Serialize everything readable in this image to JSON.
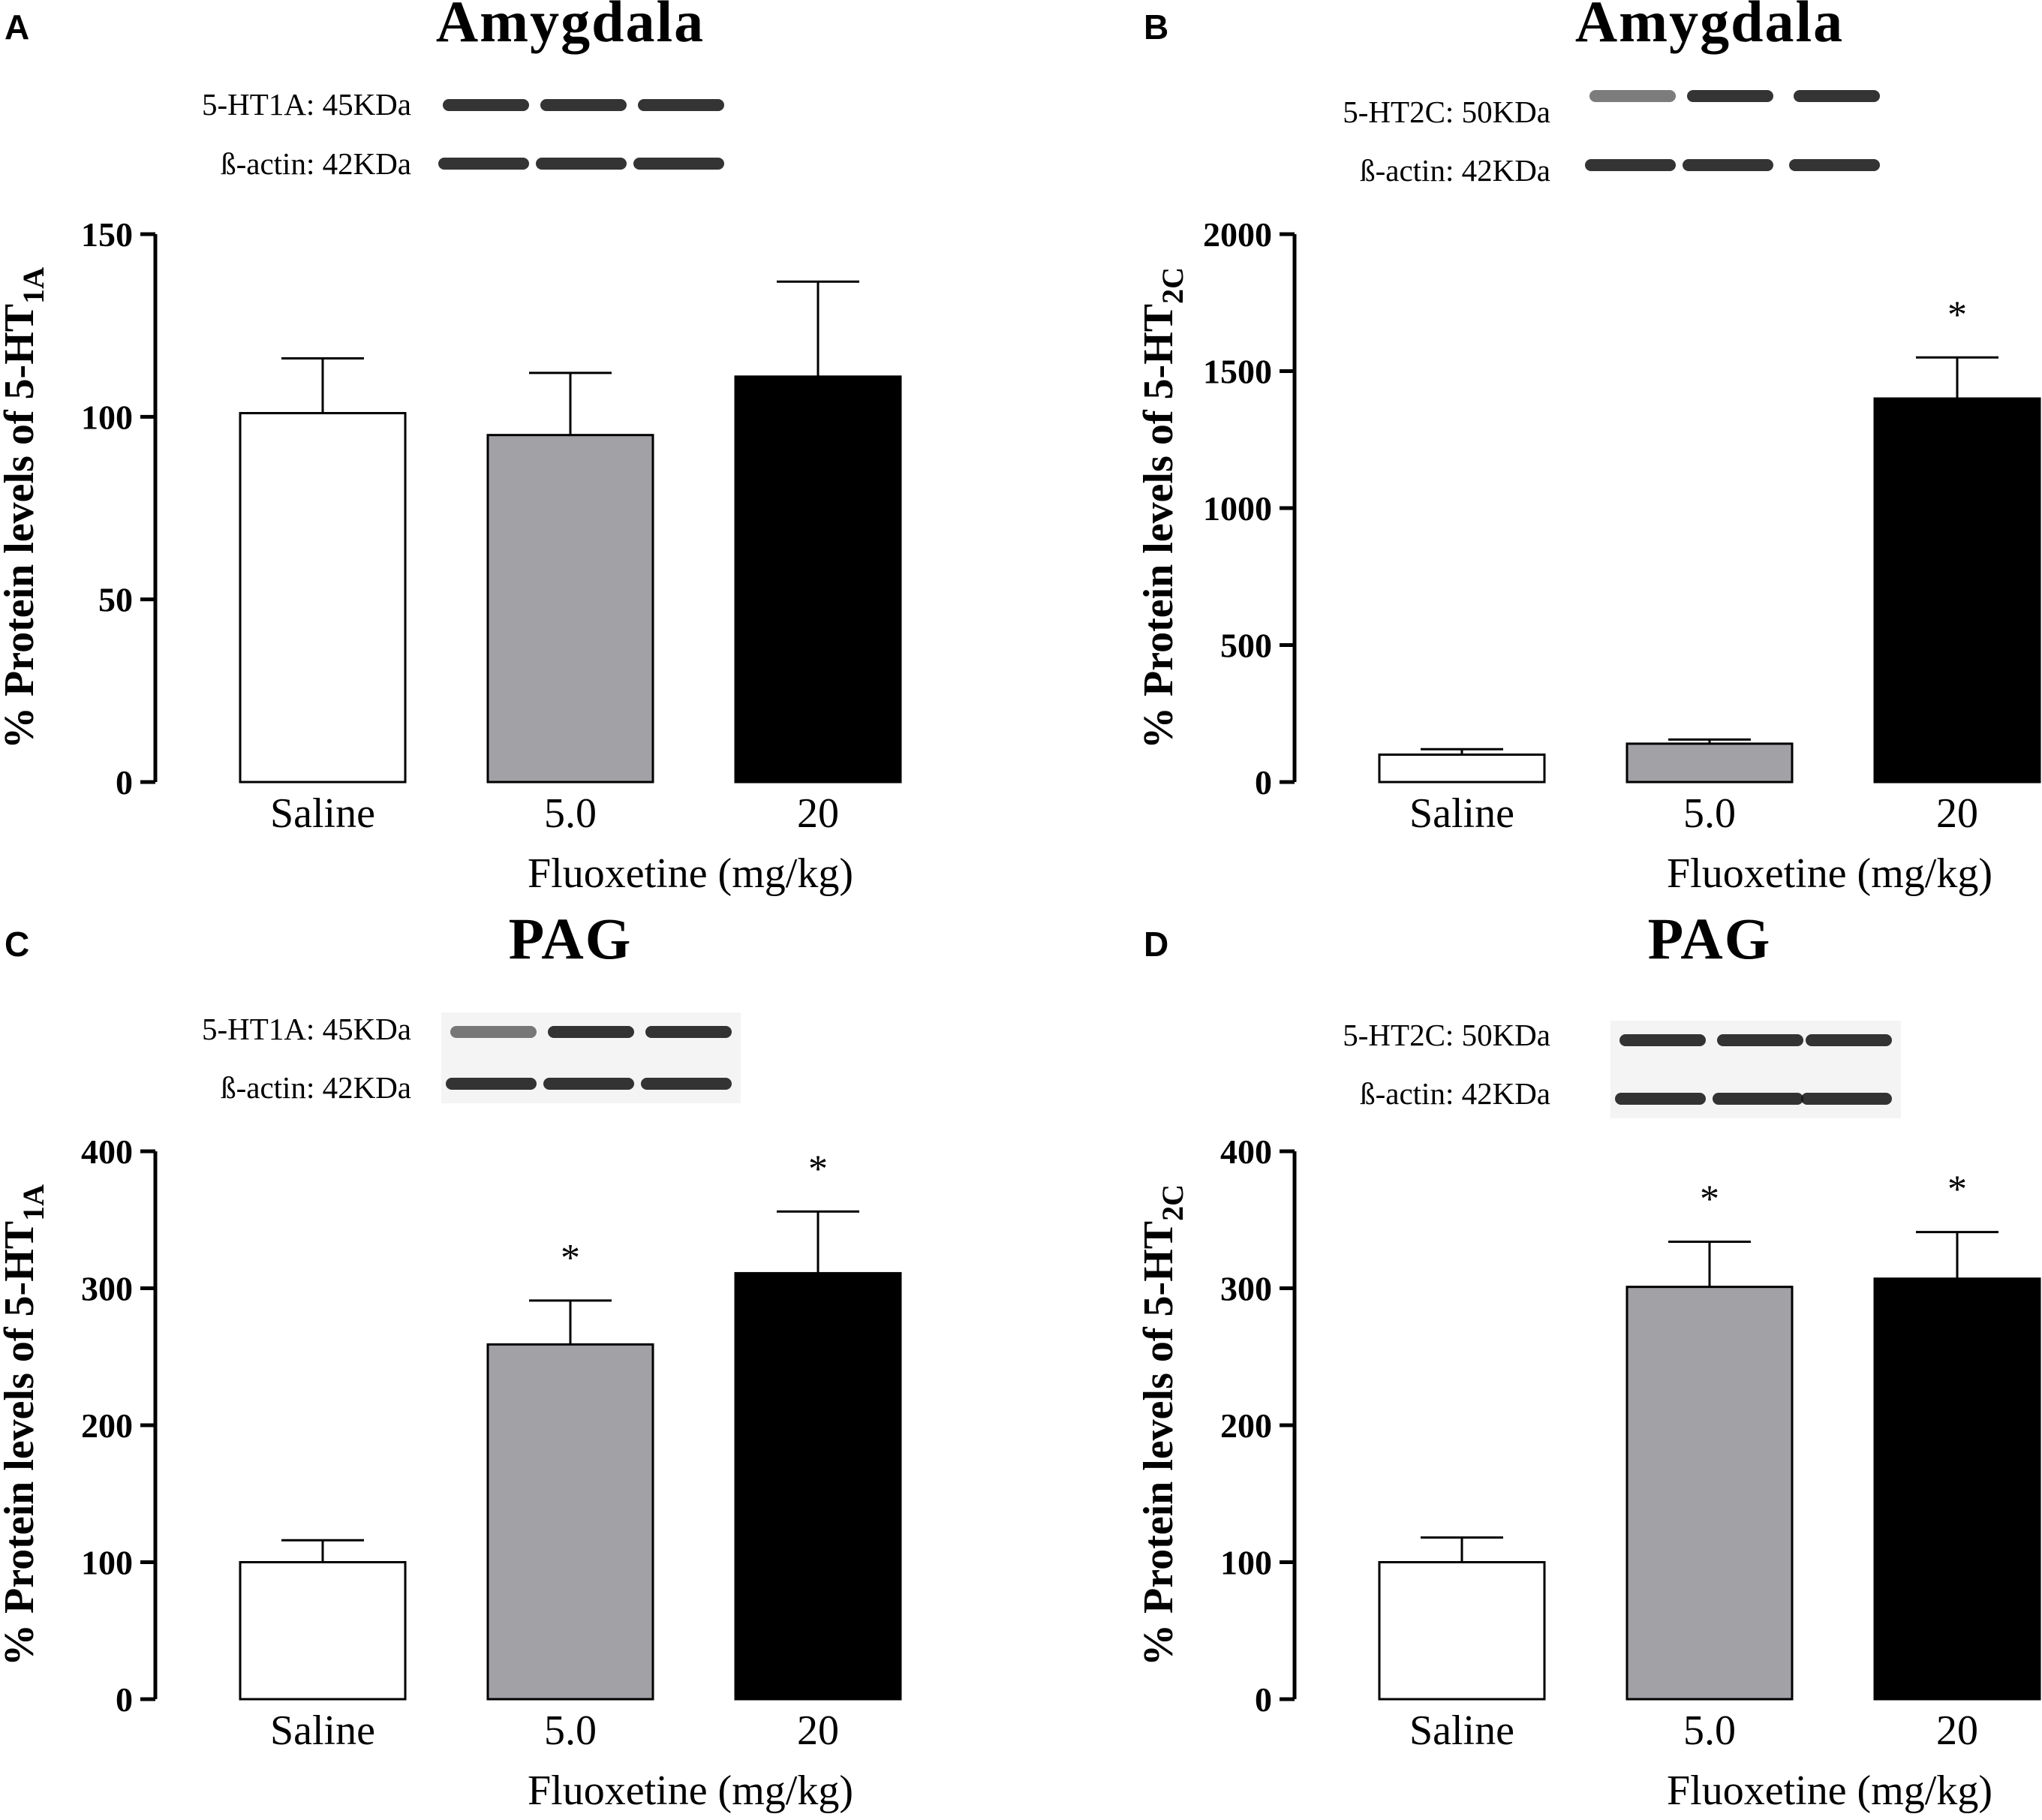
{
  "colors": {
    "saline": "#ffffff",
    "dose5": "#a2a1a6",
    "dose20": "#000000",
    "axis": "#000000"
  },
  "chart_data": [
    {
      "panel": "A",
      "type": "bar",
      "title": "Amygdala",
      "blot_labels": [
        "5-HT1A: 45KDa",
        "ß-actin: 42KDa"
      ],
      "ylabel_main": "% Protein levels of 5-HT",
      "ylabel_sub": "1A",
      "xlabel": "Fluoxetine (mg/kg)",
      "categories": [
        "Saline",
        "5.0",
        "20"
      ],
      "values": [
        101,
        95,
        111
      ],
      "errors": [
        15,
        17,
        26
      ],
      "significant": [
        false,
        false,
        false
      ],
      "sig_marker": "*",
      "yticks": [
        "0",
        "50",
        "100",
        "150"
      ],
      "ylim": [
        0,
        150
      ]
    },
    {
      "panel": "B",
      "type": "bar",
      "title": "Amygdala",
      "blot_labels": [
        "5-HT2C: 50KDa",
        "ß-actin: 42KDa"
      ],
      "ylabel_main": "% Protein levels of 5-HT",
      "ylabel_sub": "2C",
      "xlabel": "Fluoxetine (mg/kg)",
      "categories": [
        "Saline",
        "5.0",
        "20"
      ],
      "values": [
        100,
        140,
        1400
      ],
      "errors": [
        20,
        15,
        150
      ],
      "significant": [
        false,
        false,
        true
      ],
      "sig_marker": "*",
      "yticks": [
        "0",
        "500",
        "1000",
        "1500",
        "2000"
      ],
      "ylim": [
        0,
        2000
      ]
    },
    {
      "panel": "C",
      "type": "bar",
      "title": "PAG",
      "blot_labels": [
        "5-HT1A: 45KDa",
        "ß-actin: 42KDa"
      ],
      "ylabel_main": "% Protein levels of 5-HT",
      "ylabel_sub": "1A",
      "xlabel": "Fluoxetine (mg/kg)",
      "categories": [
        "Saline",
        "5.0",
        "20"
      ],
      "values": [
        100,
        259,
        311
      ],
      "errors": [
        16,
        32,
        45
      ],
      "significant": [
        false,
        true,
        true
      ],
      "sig_marker": "*",
      "yticks": [
        "0",
        "100",
        "200",
        "300",
        "400"
      ],
      "ylim": [
        0,
        400
      ]
    },
    {
      "panel": "D",
      "type": "bar",
      "title": "PAG",
      "blot_labels": [
        "5-HT2C: 50KDa",
        "ß-actin: 42KDa"
      ],
      "ylabel_main": "% Protein levels of 5-HT",
      "ylabel_sub": "2C",
      "xlabel": "Fluoxetine (mg/kg)",
      "categories": [
        "Saline",
        "5.0",
        "20"
      ],
      "values": [
        100,
        301,
        307
      ],
      "errors": [
        18,
        33,
        34
      ],
      "significant": [
        false,
        true,
        true
      ],
      "sig_marker": "*",
      "yticks": [
        "0",
        "100",
        "200",
        "300",
        "400"
      ],
      "ylim": [
        0,
        400
      ]
    }
  ]
}
